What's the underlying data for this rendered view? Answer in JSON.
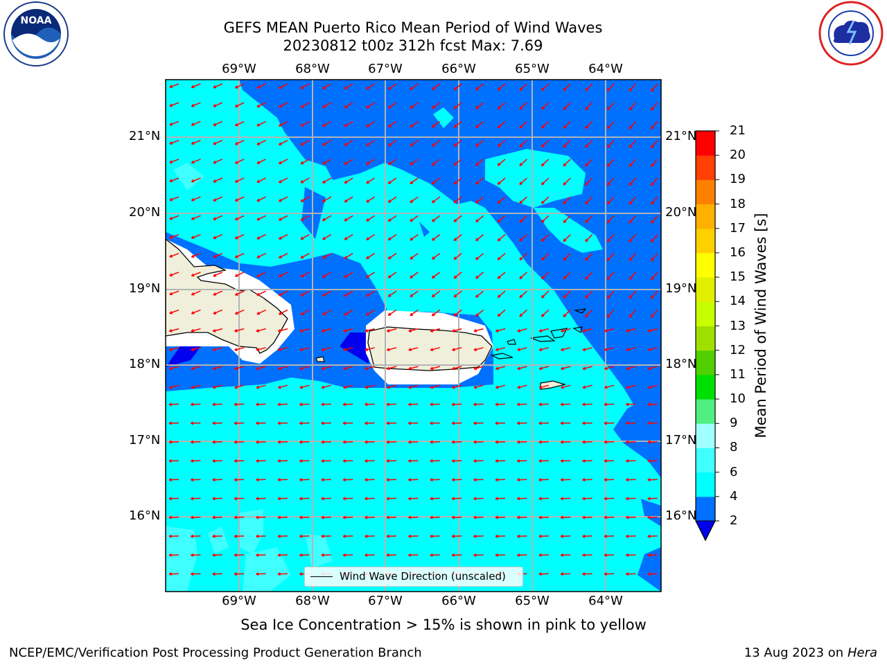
{
  "title": {
    "line1": "GEFS MEAN Puerto Rico Mean Period of Wind Waves",
    "line2": "20230812 t00z 312h fcst   Max: 7.69"
  },
  "logos": {
    "left": "noaa-logo",
    "right": "national-weather-service-logo"
  },
  "map": {
    "lon_labels": [
      "69°W",
      "68°W",
      "67°W",
      "66°W",
      "65°W",
      "64°W"
    ],
    "lat_labels": [
      "21°N",
      "20°N",
      "19°N",
      "18°N",
      "17°N",
      "16°N"
    ],
    "legend_label": "Wind Wave Direction (unscaled)",
    "arrow_color": "#ff0000",
    "land_color": "#efefdc"
  },
  "colorbar": {
    "title": "Mean Period of Wind Waves [s]",
    "ticks": [
      "2",
      "4",
      "6",
      "8",
      "9",
      "10",
      "11",
      "12",
      "13",
      "14",
      "15",
      "16",
      "17",
      "18",
      "19",
      "20",
      "21"
    ],
    "colors": [
      "#0000ee",
      "#0070ff",
      "#00ffff",
      "#40ffff",
      "#a0ffff",
      "#50f080",
      "#00e000",
      "#50d000",
      "#a0e000",
      "#c8ff00",
      "#e0f000",
      "#ffff00",
      "#ffd000",
      "#ffb000",
      "#ff8000",
      "#ff4000",
      "#ff0000"
    ]
  },
  "note": "Sea Ice Concentration > 15% is shown in pink to yellow",
  "footer": {
    "left": "NCEP/EMC/Verification Post Processing Product Generation Branch",
    "date": "13 Aug 2023 on",
    "host": "Hera"
  }
}
